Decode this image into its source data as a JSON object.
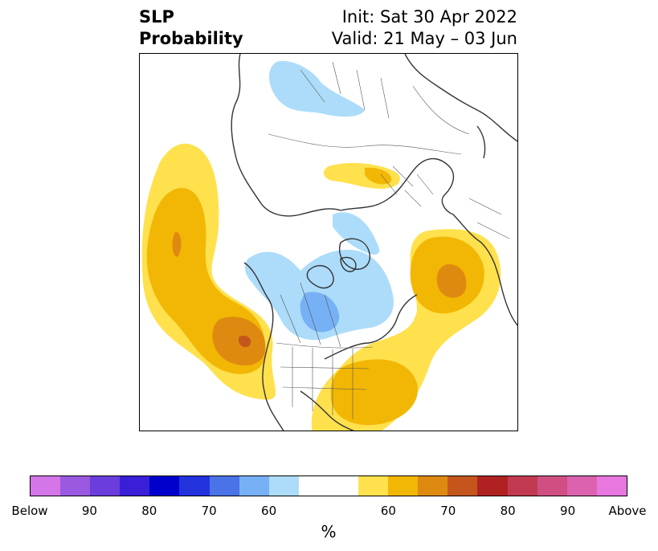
{
  "header": {
    "title_line1": "SLP",
    "title_line2": "Probability",
    "init": "Init: Sat 30 Apr 2022",
    "valid": "Valid: 21 May – 03 Jun"
  },
  "colorbar": {
    "segments": [
      "#d475e8",
      "#9b58e0",
      "#6a3ddc",
      "#3a1fd8",
      "#0000cc",
      "#2233dd",
      "#4a73e8",
      "#76b1f5",
      "#acdcfa",
      "#ffffff",
      "#ffe14d",
      "#f2b705",
      "#de8a10",
      "#c4561d",
      "#b02222",
      "#c23a52",
      "#cf4f82",
      "#dc62b0",
      "#e877e0"
    ],
    "segment_weights": [
      1,
      1,
      1,
      1,
      1,
      1,
      1,
      1,
      1,
      2,
      1,
      1,
      1,
      1,
      1,
      1,
      1,
      1,
      1
    ],
    "labels": [
      "Below",
      "90",
      "80",
      "70",
      "60",
      "60",
      "70",
      "80",
      "90",
      "Above"
    ],
    "unit": "%"
  },
  "colors": {
    "below_light": "#acdcfa",
    "below_mid": "#76b1f5",
    "above_light": "#ffe14d",
    "above_mid": "#f2b705",
    "above_dark": "#de8a10",
    "above_darker": "#c4561d",
    "coast": "#333333"
  }
}
